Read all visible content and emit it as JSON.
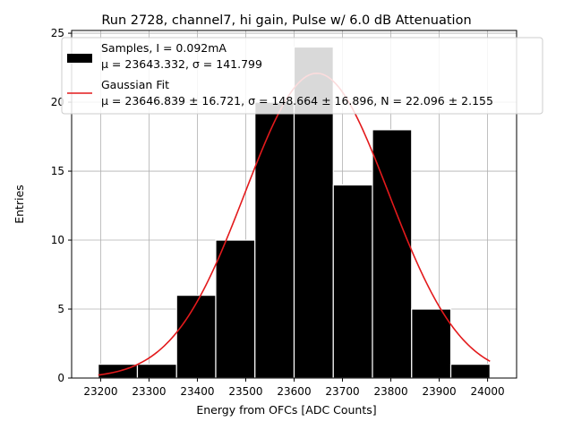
{
  "chart_data": {
    "type": "bar",
    "title": "Run 2728, channel7, hi gain, Pulse w/ 6.0 dB Attenuation",
    "xlabel": "Energy from OFCs [ADC Counts]",
    "ylabel": "Entries",
    "xlim": [
      23140,
      24060
    ],
    "ylim": [
      0,
      25.2
    ],
    "xticks": [
      23200,
      23300,
      23400,
      23500,
      23600,
      23700,
      23800,
      23900,
      24000
    ],
    "yticks": [
      0,
      5,
      10,
      15,
      20,
      25
    ],
    "grid": true,
    "legend_position": "top-right",
    "histogram": {
      "name": "Samples, I = 0.092mA",
      "stats": "μ = 23643.332, σ = 141.799",
      "color": "#000000",
      "bin_edges": [
        23195,
        23276,
        23357,
        23438,
        23519,
        23600,
        23681,
        23762,
        23843,
        23924,
        24005
      ],
      "counts": [
        1,
        1,
        6,
        10,
        20,
        24,
        14,
        18,
        5,
        1
      ]
    },
    "fit": {
      "name": "Gaussian Fit",
      "stats": "μ = 23646.839 ± 16.721, σ = 148.664 ± 16.896, N = 22.096 ± 2.155",
      "color": "#e31a1c",
      "mu": 23646.839,
      "sigma": 148.664,
      "N": 22.096,
      "x_range": [
        23195,
        24005
      ]
    }
  }
}
